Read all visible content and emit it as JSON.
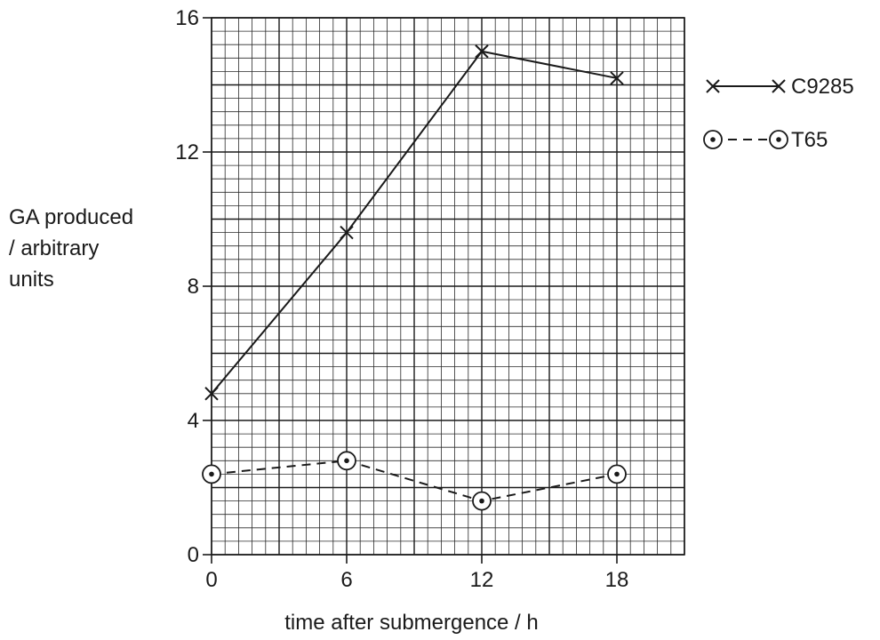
{
  "chart_data": {
    "type": "line",
    "title": "",
    "xlabel": "time after submergence / h",
    "ylabel_lines": [
      "GA produced",
      "/ arbitrary",
      "units"
    ],
    "xlim": [
      0,
      21
    ],
    "ylim": [
      0,
      16
    ],
    "x_ticks": [
      0,
      6,
      12,
      18
    ],
    "y_ticks": [
      0,
      4,
      8,
      12,
      16
    ],
    "minor_grid_x": 0.6,
    "minor_grid_y": 0.4,
    "grid": true,
    "legend_position": "right",
    "series": [
      {
        "name": "C9285",
        "marker": "cross",
        "line": "solid",
        "x": [
          0,
          6,
          12,
          18
        ],
        "y": [
          4.8,
          9.6,
          15.0,
          14.2
        ]
      },
      {
        "name": "T65",
        "marker": "circled-dot",
        "line": "dashed",
        "x": [
          0,
          6,
          12,
          18
        ],
        "y": [
          2.4,
          2.8,
          1.6,
          2.4
        ]
      }
    ]
  }
}
